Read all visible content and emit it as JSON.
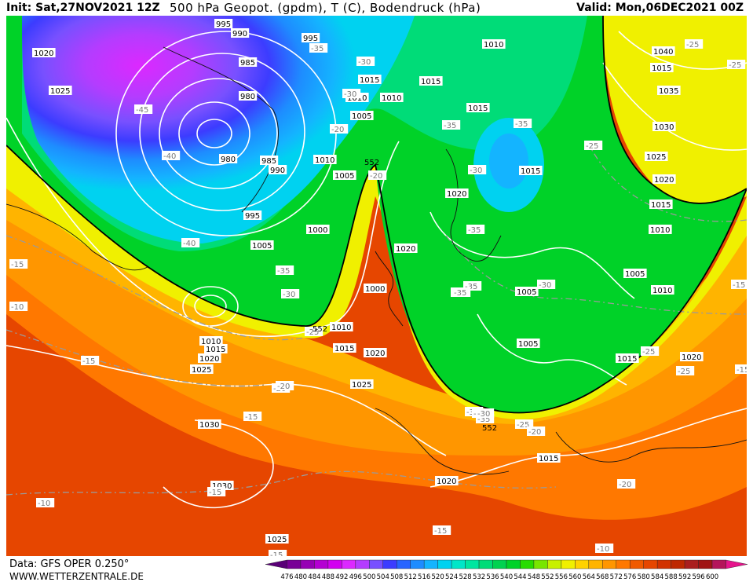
{
  "header": {
    "init": "Init: Sat,27NOV2021 12Z",
    "title": "500 hPa Geopot. (gpdm), T (C), Bodendruck (hPa)",
    "valid": "Valid: Mon,06DEC2021 00Z"
  },
  "footer": {
    "data_source": "Data: GFS OPER 0.250°",
    "website": "WWW.WETTERZENTRALE.DE"
  },
  "colorbar": {
    "ticks": [
      "476",
      "480",
      "484",
      "488",
      "492",
      "496",
      "500",
      "504",
      "508",
      "512",
      "516",
      "520",
      "524",
      "528",
      "532",
      "536",
      "540",
      "544",
      "548",
      "552",
      "556",
      "560",
      "564",
      "568",
      "572",
      "576",
      "580",
      "584",
      "588",
      "592",
      "596",
      "600"
    ],
    "colors": [
      "#5a0078",
      "#780096",
      "#9600b4",
      "#b400d2",
      "#d200f0",
      "#dc28ff",
      "#b43cff",
      "#7850ff",
      "#3c3cff",
      "#2864ff",
      "#1e8cff",
      "#14b4ff",
      "#00d2f0",
      "#00e6c8",
      "#00e6a0",
      "#00dc78",
      "#00d250",
      "#00d228",
      "#28dc00",
      "#78e600",
      "#c8f000",
      "#f0f000",
      "#ffd200",
      "#ffb400",
      "#ff9600",
      "#ff7800",
      "#f05a00",
      "#e64600",
      "#d23200",
      "#be2800",
      "#aa1e1e",
      "#a01414",
      "#b4145a",
      "#e6148c"
    ]
  },
  "map_labels": {
    "pressure": [
      {
        "t": "995"
      },
      {
        "t": "990"
      },
      {
        "t": "985"
      },
      {
        "t": "980"
      },
      {
        "t": "980"
      },
      {
        "t": "985"
      },
      {
        "t": "990"
      },
      {
        "t": "995"
      },
      {
        "t": "1020"
      },
      {
        "t": "1025"
      },
      {
        "t": "1000"
      },
      {
        "t": "1005"
      },
      {
        "t": "1010"
      },
      {
        "t": "1005"
      },
      {
        "t": "1010"
      },
      {
        "t": "1010"
      },
      {
        "t": "1015"
      },
      {
        "t": "1015"
      },
      {
        "t": "1015"
      },
      {
        "t": "1015"
      },
      {
        "t": "1020"
      },
      {
        "t": "1020"
      },
      {
        "t": "1010"
      },
      {
        "t": "1015"
      },
      {
        "t": "1005"
      },
      {
        "t": "1010"
      },
      {
        "t": "1005"
      },
      {
        "t": "1000"
      },
      {
        "t": "1005"
      },
      {
        "t": "1010"
      },
      {
        "t": "1015"
      },
      {
        "t": "1020"
      },
      {
        "t": "1025"
      },
      {
        "t": "1010"
      },
      {
        "t": "1015"
      },
      {
        "t": "1020"
      },
      {
        "t": "1025"
      },
      {
        "t": "1030"
      },
      {
        "t": "1030"
      },
      {
        "t": "1025"
      },
      {
        "t": "1020"
      },
      {
        "t": "1015"
      },
      {
        "t": "1040"
      },
      {
        "t": "1035"
      },
      {
        "t": "1030"
      },
      {
        "t": "1025"
      },
      {
        "t": "1020"
      },
      {
        "t": "1015"
      },
      {
        "t": "1010"
      },
      {
        "t": "1005"
      },
      {
        "t": "1010"
      },
      {
        "t": "1015"
      },
      {
        "t": "1020"
      },
      {
        "t": "1020"
      },
      {
        "t": "995"
      }
    ],
    "temperature": [
      {
        "t": "-45"
      },
      {
        "t": "-40"
      },
      {
        "t": "-40"
      },
      {
        "t": "-35"
      },
      {
        "t": "-30"
      },
      {
        "t": "-25"
      },
      {
        "t": "-35"
      },
      {
        "t": "-30"
      },
      {
        "t": "-35"
      },
      {
        "t": "-35"
      },
      {
        "t": "-35"
      },
      {
        "t": "-30"
      },
      {
        "t": "-25"
      },
      {
        "t": "-20"
      },
      {
        "t": "-15"
      },
      {
        "t": "-15"
      },
      {
        "t": "-15"
      },
      {
        "t": "-10"
      },
      {
        "t": "-15"
      },
      {
        "t": "-15"
      },
      {
        "t": "-10"
      },
      {
        "t": "-20"
      },
      {
        "t": "-25"
      },
      {
        "t": "-30"
      },
      {
        "t": "-35"
      },
      {
        "t": "-25"
      },
      {
        "t": "-20"
      },
      {
        "t": "-25"
      },
      {
        "t": "-15"
      },
      {
        "t": "-20"
      },
      {
        "t": "-15"
      },
      {
        "t": "-35"
      },
      {
        "t": "-30"
      },
      {
        "t": "-20"
      },
      {
        "t": "-25"
      },
      {
        "t": "-15"
      },
      {
        "t": "-10"
      },
      {
        "t": "-30"
      },
      {
        "t": "-30"
      },
      {
        "t": "-20"
      },
      {
        "t": "-25"
      },
      {
        "t": "-30"
      },
      {
        "t": "-35"
      },
      {
        "t": "-30"
      }
    ],
    "geopotential": [
      {
        "t": "552"
      },
      {
        "t": "552"
      },
      {
        "t": "552"
      }
    ]
  }
}
